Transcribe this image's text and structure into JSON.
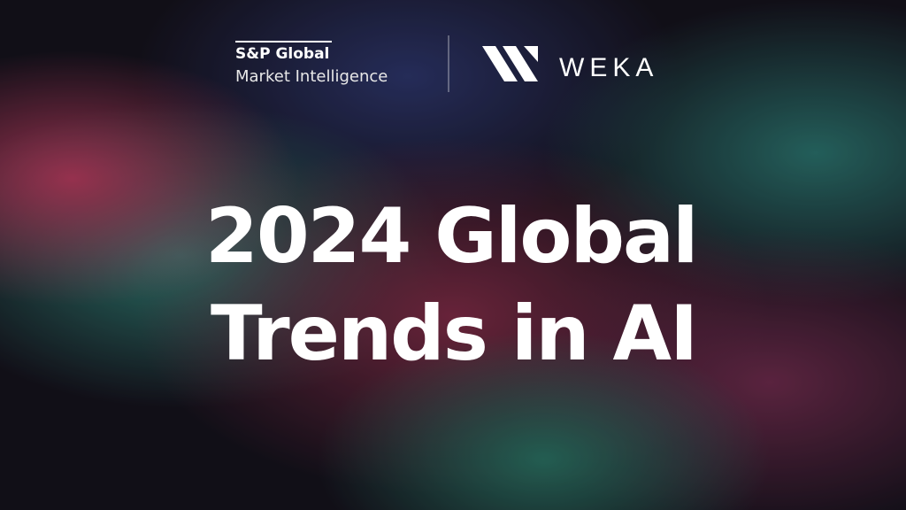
{
  "logos": {
    "sp_line1": "S&P Global",
    "sp_line2": "Market Intelligence",
    "weka": "WEKA"
  },
  "title": {
    "line1": "2024 Global",
    "line2": "Trends in AI"
  }
}
